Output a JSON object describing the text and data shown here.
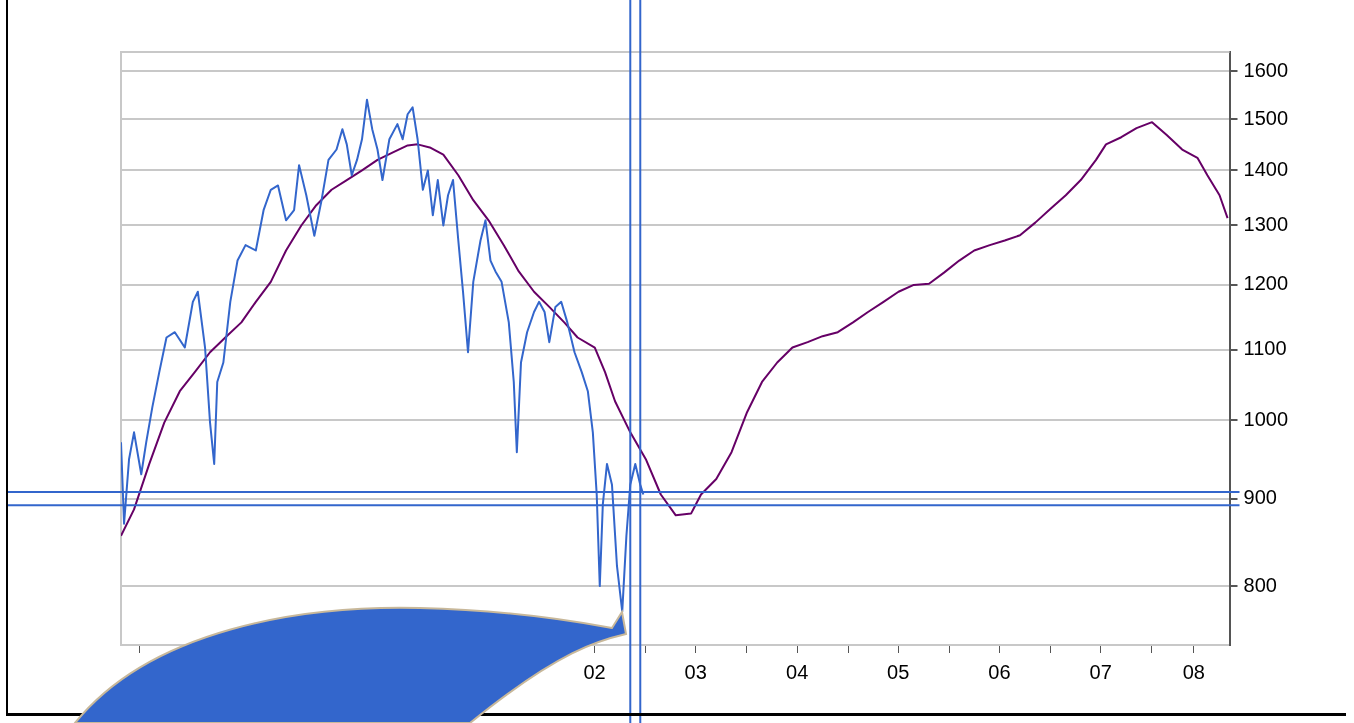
{
  "chart_data": {
    "type": "line",
    "log": "y",
    "grid": "y",
    "marker": "none",
    "line_style": "solid",
    "xlim": [
      "1997-10-27",
      "2008-10-08"
    ],
    "xticks": [
      {
        "value": "1998",
        "label": null
      },
      {
        "value": "1999",
        "label": null
      },
      {
        "value": "2000",
        "label": null
      },
      {
        "value": "2001",
        "label": null
      },
      {
        "value": "2002",
        "label": null
      },
      {
        "value": "2003",
        "label": null
      },
      {
        "value": "2004",
        "label": null
      },
      {
        "value": "2005",
        "label": null
      },
      {
        "value": "2006",
        "label": null
      },
      {
        "value": "2007",
        "label": null
      },
      {
        "value": "2008",
        "label": null
      },
      {
        "value": "2002-07",
        "label": "02"
      },
      {
        "value": "2003-07",
        "label": "03"
      },
      {
        "value": "2004-07",
        "label": "04"
      },
      {
        "value": "2005-07",
        "label": "05"
      },
      {
        "value": "2006-07",
        "label": "06"
      },
      {
        "value": "2007-07",
        "label": "07"
      },
      {
        "value": "2008-06",
        "label": "08"
      }
    ],
    "ylim": [
      739,
      1642
    ],
    "yticks": [
      800,
      900,
      1000,
      1100,
      1200,
      1300,
      1400,
      1500,
      1600
    ],
    "ref_lines": [
      {
        "axis": "y",
        "value": 908,
        "color": "#3366cc"
      },
      {
        "axis": "y",
        "value": 892,
        "color": "#3366cc"
      },
      {
        "axis": "x",
        "value": "2002-11-07",
        "color": "#3366cc"
      },
      {
        "axis": "x",
        "value": "2002-12-13",
        "color": "#3366cc"
      }
    ],
    "series": [
      {
        "color": "#3366cc",
        "x": [
          "1997-10-27",
          "1997-11-07",
          "1997-11-25",
          "1997-12-13",
          "1998-01-08",
          "1998-01-26",
          "1998-02-17",
          "1998-03-14",
          "1998-04-09",
          "1998-05-09",
          "1998-06-14",
          "1998-07-13",
          "1998-07-31",
          "1998-08-26",
          "1998-09-13",
          "1998-09-28",
          "1998-10-09",
          "1998-10-31",
          "1998-11-25",
          "1998-12-21",
          "1999-01-19",
          "1999-02-25",
          "1999-03-25",
          "1999-04-20",
          "1999-05-16",
          "1999-06-14",
          "1999-07-13",
          "1999-07-31",
          "1999-08-26",
          "1999-09-24",
          "1999-10-20",
          "1999-11-14",
          "1999-12-13",
          "2000-01-03",
          "2000-01-19",
          "2000-02-06",
          "2000-02-25",
          "2000-03-14",
          "2000-04-01",
          "2000-04-20",
          "2000-05-09",
          "2000-05-27",
          "2000-06-21",
          "2000-07-20",
          "2000-08-08",
          "2000-08-26",
          "2000-09-13",
          "2000-10-01",
          "2000-10-20",
          "2000-11-07",
          "2000-11-25",
          "2000-12-13",
          "2001-01-02",
          "2001-01-19",
          "2001-02-06",
          "2001-02-25",
          "2001-03-14",
          "2001-04-01",
          "2001-04-20",
          "2001-05-16",
          "2001-06-03",
          "2001-06-21",
          "2001-07-09",
          "2001-07-31",
          "2001-08-26",
          "2001-09-13",
          "2001-09-24",
          "2001-10-09",
          "2001-10-31",
          "2001-11-25",
          "2001-12-13",
          "2002-01-02",
          "2002-01-19",
          "2002-02-10",
          "2002-03-03",
          "2002-03-25",
          "2002-04-20",
          "2002-05-16",
          "2002-06-07",
          "2002-06-25",
          "2002-07-09",
          "2002-07-20",
          "2002-07-31",
          "2002-08-15",
          "2002-09-02",
          "2002-09-20",
          "2002-10-09",
          "2002-10-24",
          "2002-11-07",
          "2002-11-25",
          "2002-12-13",
          "2002-12-24"
        ],
        "values": [
          971,
          870,
          949,
          984,
          930,
          971,
          1018,
          1067,
          1118,
          1126,
          1103,
          1173,
          1189,
          1103,
          997,
          943,
          1053,
          1081,
          1173,
          1240,
          1266,
          1257,
          1327,
          1364,
          1372,
          1309,
          1327,
          1410,
          1354,
          1282,
          1345,
          1420,
          1440,
          1480,
          1450,
          1391,
          1420,
          1460,
          1540,
          1480,
          1440,
          1382,
          1460,
          1490,
          1460,
          1510,
          1524,
          1460,
          1364,
          1400,
          1318,
          1382,
          1300,
          1354,
          1382,
          1274,
          1189,
          1096,
          1205,
          1274,
          1309,
          1240,
          1222,
          1205,
          1141,
          1053,
          958,
          1081,
          1126,
          1157,
          1173,
          1157,
          1111,
          1165,
          1173,
          1141,
          1096,
          1067,
          1040,
          984,
          905,
          800,
          893,
          943,
          917,
          822,
          773,
          856,
          917,
          943,
          917,
          905
        ]
      },
      {
        "color": "#660066",
        "x": [
          "1997-10-27",
          "1997-12-13",
          "1998-02-06",
          "1998-04-01",
          "1998-05-27",
          "1998-07-20",
          "1998-09-13",
          "1998-11-07",
          "1999-01-04",
          "1999-02-25",
          "1999-04-20",
          "1999-06-14",
          "1999-08-08",
          "1999-10-01",
          "1999-11-25",
          "2000-01-19",
          "2000-03-14",
          "2000-05-09",
          "2000-07-02",
          "2000-08-26",
          "2000-10-01",
          "2000-11-14",
          "2001-01-02",
          "2001-02-25",
          "2001-04-20",
          "2001-06-14",
          "2001-08-08",
          "2001-10-01",
          "2001-11-25",
          "2002-01-19",
          "2002-03-14",
          "2002-05-01",
          "2002-07-02",
          "2002-08-08",
          "2002-09-13",
          "2002-11-07",
          "2003-01-02",
          "2003-02-25",
          "2003-04-20",
          "2003-06-14",
          "2003-07-20",
          "2003-09-13",
          "2003-11-07",
          "2004-01-02",
          "2004-02-25",
          "2004-04-20",
          "2004-06-14",
          "2004-08-08",
          "2004-10-01",
          "2004-11-25",
          "2005-01-19",
          "2005-03-14",
          "2005-05-09",
          "2005-07-02",
          "2005-08-26",
          "2005-10-20",
          "2005-12-13",
          "2006-02-06",
          "2006-04-01",
          "2006-05-27",
          "2006-07-20",
          "2006-09-13",
          "2006-11-07",
          "2007-01-02",
          "2007-02-25",
          "2007-04-20",
          "2007-06-14",
          "2007-07-20",
          "2007-09-13",
          "2007-11-07",
          "2008-01-02",
          "2008-02-25",
          "2008-04-20",
          "2008-06-14",
          "2008-07-20",
          "2008-09-02",
          "2008-10-01"
        ],
        "values": [
          856,
          887,
          943,
          997,
          1040,
          1067,
          1096,
          1118,
          1141,
          1173,
          1205,
          1257,
          1300,
          1336,
          1364,
          1382,
          1400,
          1420,
          1434,
          1448,
          1450,
          1444,
          1430,
          1391,
          1345,
          1309,
          1266,
          1222,
          1189,
          1165,
          1141,
          1118,
          1103,
          1067,
          1026,
          984,
          949,
          905,
          880,
          882,
          905,
          924,
          958,
          1011,
          1053,
          1081,
          1103,
          1111,
          1120,
          1126,
          1141,
          1157,
          1173,
          1189,
          1200,
          1202,
          1220,
          1240,
          1257,
          1266,
          1274,
          1283,
          1305,
          1330,
          1354,
          1382,
          1420,
          1450,
          1464,
          1482,
          1494,
          1468,
          1440,
          1424,
          1391,
          1354,
          1313
        ]
      }
    ]
  }
}
